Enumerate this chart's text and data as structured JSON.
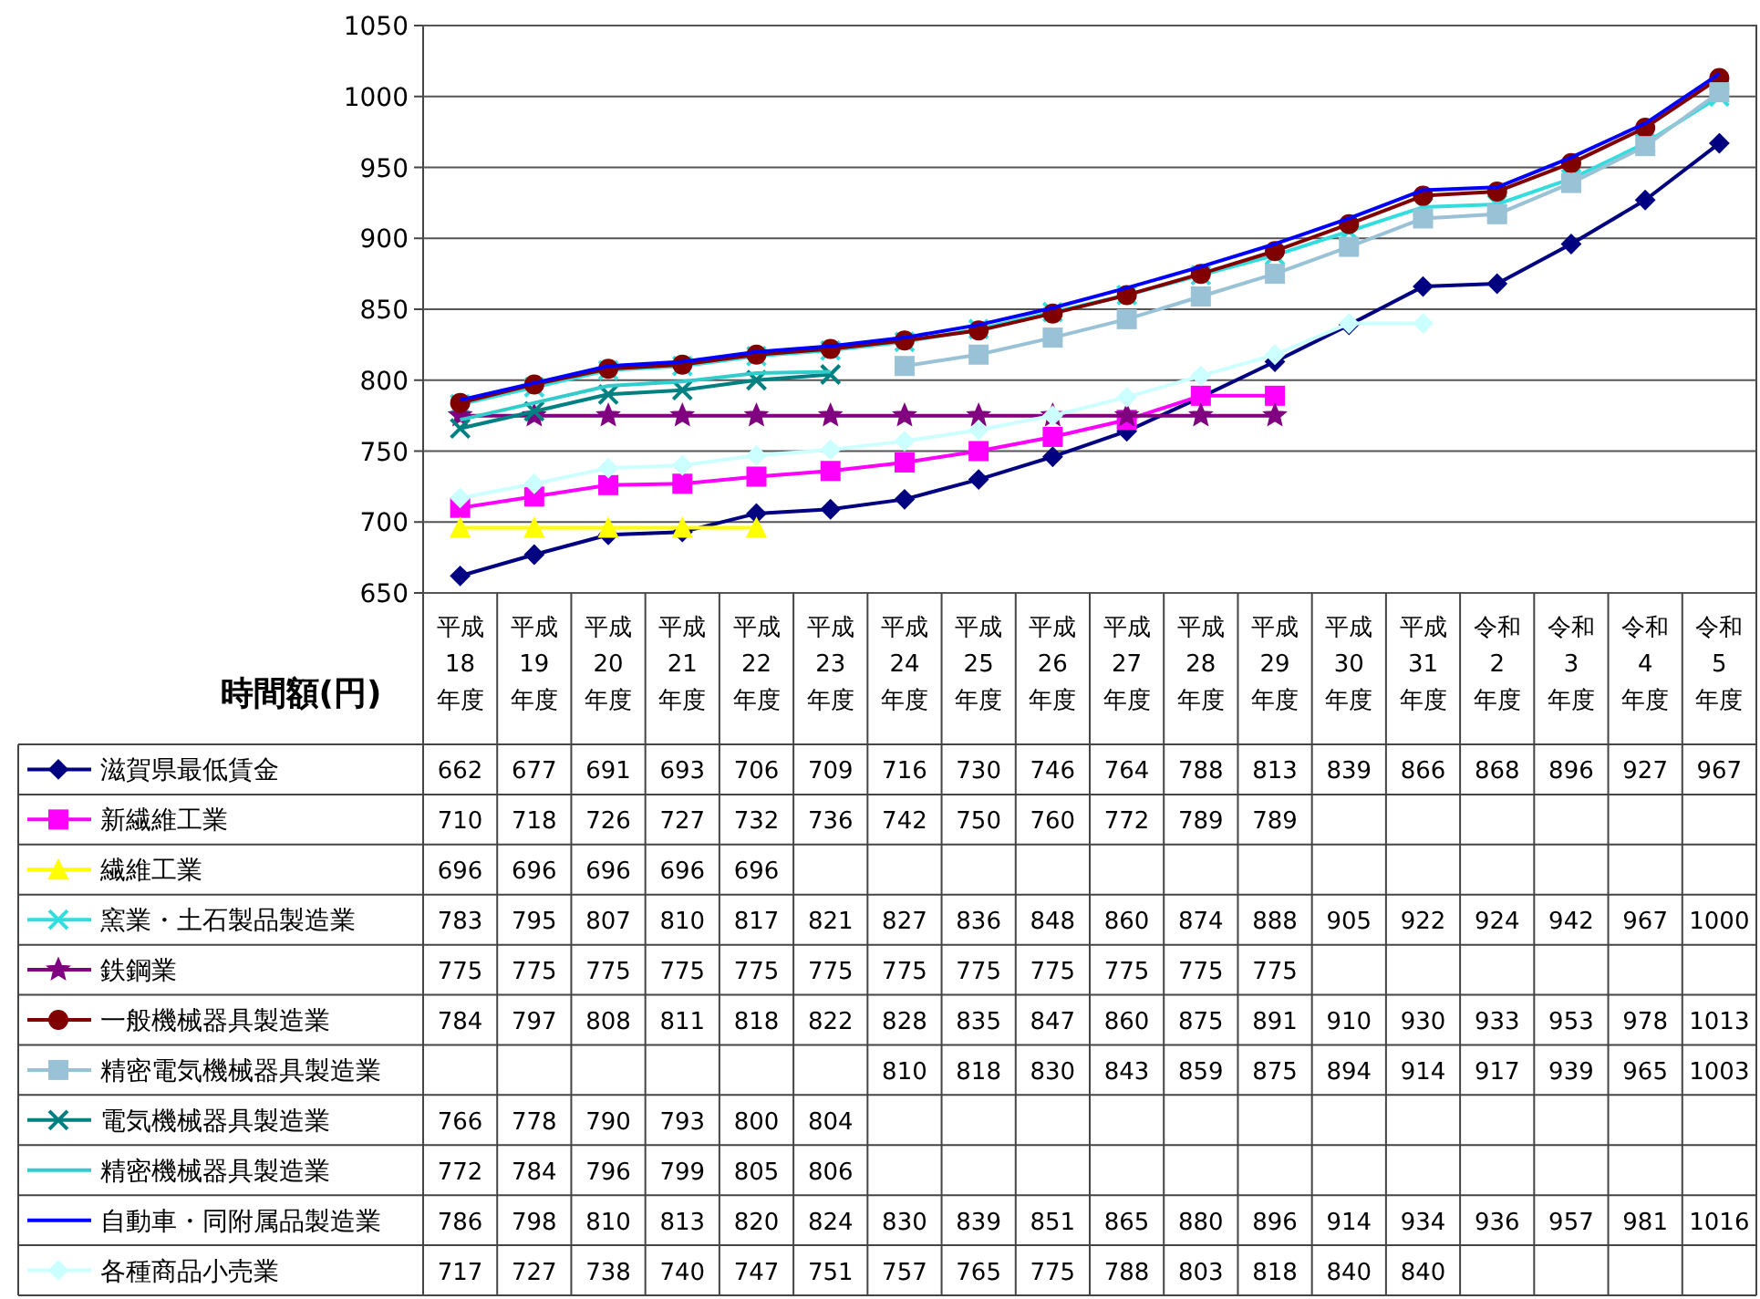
{
  "chart_data": {
    "type": "line",
    "ylabel": "時間額(円)",
    "categories": [
      "平成\n18\n年度",
      "平成\n19\n年度",
      "平成\n20\n年度",
      "平成\n21\n年度",
      "平成\n22\n年度",
      "平成\n23\n年度",
      "平成\n24\n年度",
      "平成\n25\n年度",
      "平成\n26\n年度",
      "平成\n27\n年度",
      "平成\n28\n年度",
      "平成\n29\n年度",
      "平成\n30\n年度",
      "平成\n31\n年度",
      "令和\n2\n年度",
      "令和\n3\n年度",
      "令和\n4\n年度",
      "令和\n5\n年度"
    ],
    "ylim": [
      650,
      1050
    ],
    "yticks": [
      650,
      700,
      750,
      800,
      850,
      900,
      950,
      1000,
      1050
    ],
    "grid": "y",
    "legend": "bottom",
    "data_labels": true,
    "series": [
      {
        "name": "滋賀県最低賃金",
        "color": "#000080",
        "marker": "diamond",
        "values": [
          662,
          677,
          691,
          693,
          706,
          709,
          716,
          730,
          746,
          764,
          788,
          813,
          839,
          866,
          868,
          896,
          927,
          967
        ]
      },
      {
        "name": "新繊維工業",
        "color": "#ff00ff",
        "marker": "square",
        "values": [
          710,
          718,
          726,
          727,
          732,
          736,
          742,
          750,
          760,
          772,
          789,
          789,
          null,
          null,
          null,
          null,
          null,
          null
        ]
      },
      {
        "name": "繊維工業",
        "color": "#ffff00",
        "marker": "triangle",
        "values": [
          696,
          696,
          696,
          696,
          696,
          null,
          null,
          null,
          null,
          null,
          null,
          null,
          null,
          null,
          null,
          null,
          null,
          null
        ]
      },
      {
        "name": "窯業・土石製品製造業",
        "color": "#33dddd",
        "marker": "cross",
        "values": [
          783,
          795,
          807,
          810,
          817,
          821,
          827,
          836,
          848,
          860,
          874,
          888,
          905,
          922,
          924,
          942,
          967,
          1000
        ]
      },
      {
        "name": "鉄鋼業",
        "color": "#800080",
        "marker": "star",
        "values": [
          775,
          775,
          775,
          775,
          775,
          775,
          775,
          775,
          775,
          775,
          775,
          775,
          null,
          null,
          null,
          null,
          null,
          null
        ]
      },
      {
        "name": "一般機械器具製造業",
        "color": "#800000",
        "marker": "circle",
        "values": [
          784,
          797,
          808,
          811,
          818,
          822,
          828,
          835,
          847,
          860,
          875,
          891,
          910,
          930,
          933,
          953,
          978,
          1013
        ]
      },
      {
        "name": "精密電気機械器具製造業",
        "color": "#99c2d6",
        "marker": "square",
        "values": [
          null,
          null,
          null,
          null,
          null,
          null,
          810,
          818,
          830,
          843,
          859,
          875,
          894,
          914,
          917,
          939,
          965,
          1003
        ]
      },
      {
        "name": "電気機械器具製造業",
        "color": "#008080",
        "marker": "cross",
        "values": [
          766,
          778,
          790,
          793,
          800,
          804,
          null,
          null,
          null,
          null,
          null,
          null,
          null,
          null,
          null,
          null,
          null,
          null
        ]
      },
      {
        "name": "精密機械器具製造業",
        "color": "#33cccc",
        "marker": "none",
        "values": [
          772,
          784,
          796,
          799,
          805,
          806,
          null,
          null,
          null,
          null,
          null,
          null,
          null,
          null,
          null,
          null,
          null,
          null
        ]
      },
      {
        "name": "自動車・同附属品製造業",
        "color": "#0000ff",
        "marker": "none",
        "values": [
          786,
          798,
          810,
          813,
          820,
          824,
          830,
          839,
          851,
          865,
          880,
          896,
          914,
          934,
          936,
          957,
          981,
          1016
        ]
      },
      {
        "name": "各種商品小売業",
        "color": "#ccffff",
        "marker": "diamond",
        "values": [
          717,
          727,
          738,
          740,
          747,
          751,
          757,
          765,
          775,
          788,
          803,
          818,
          840,
          840,
          null,
          null,
          null,
          null
        ]
      }
    ]
  }
}
